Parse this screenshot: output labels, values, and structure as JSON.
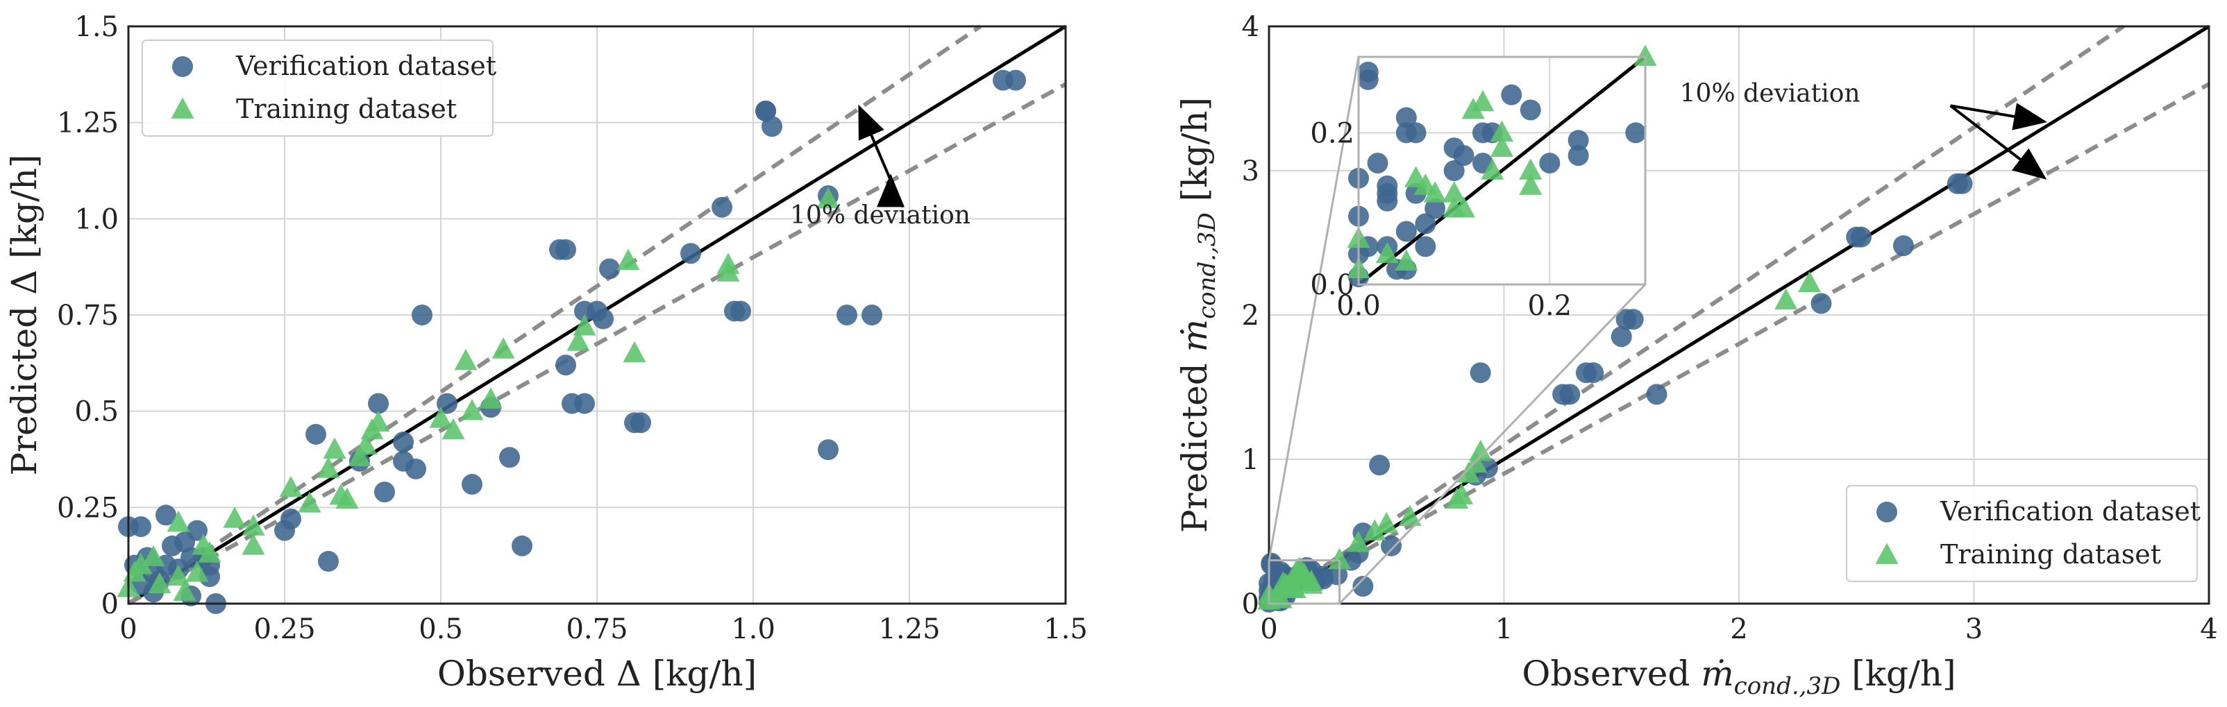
{
  "chart_data": [
    {
      "type": "scatter",
      "xlabel": "Observed Δ [kg/h]",
      "ylabel": "Predicted Δ [kg/h]",
      "xlim": [
        0,
        1.5
      ],
      "ylim": [
        0,
        1.5
      ],
      "xticks": [
        "0",
        "0.25",
        "0.5",
        "0.75",
        "1.0",
        "1.25",
        "1.5"
      ],
      "yticks": [
        "0",
        "0.25",
        "0.5",
        "0.75",
        "1.0",
        "1.25",
        "1.5"
      ],
      "grid": true,
      "legend_position": "top-left",
      "annotation": {
        "text": "10% deviation",
        "anchor": [
          1.22,
          1.1
        ],
        "targets": [
          [
            1.17,
            1.29
          ],
          [
            1.22,
            1.11
          ]
        ]
      },
      "reference_lines": [
        {
          "name": "identity",
          "slope": 1.0,
          "style": "solid"
        },
        {
          "name": "+10%",
          "slope": 1.1,
          "style": "dashed"
        },
        {
          "name": "-10%",
          "slope": 0.9,
          "style": "dashed"
        }
      ],
      "series": [
        {
          "name": "Verification dataset",
          "marker": "circle",
          "color": "#3E6590",
          "points": [
            [
              0.0,
              0.2
            ],
            [
              0.02,
              0.2
            ],
            [
              0.01,
              0.1
            ],
            [
              0.02,
              0.05
            ],
            [
              0.04,
              0.03
            ],
            [
              0.05,
              0.06
            ],
            [
              0.06,
              0.23
            ],
            [
              0.07,
              0.15
            ],
            [
              0.09,
              0.16
            ],
            [
              0.1,
              0.12
            ],
            [
              0.11,
              0.19
            ],
            [
              0.12,
              0.12
            ],
            [
              0.13,
              0.1
            ],
            [
              0.14,
              0.0
            ],
            [
              0.13,
              0.07
            ],
            [
              0.08,
              0.09
            ],
            [
              0.1,
              0.02
            ],
            [
              0.06,
              0.1
            ],
            [
              0.04,
              0.08
            ],
            [
              0.03,
              0.12
            ],
            [
              0.25,
              0.19
            ],
            [
              0.26,
              0.22
            ],
            [
              0.3,
              0.44
            ],
            [
              0.32,
              0.11
            ],
            [
              0.37,
              0.37
            ],
            [
              0.4,
              0.52
            ],
            [
              0.41,
              0.29
            ],
            [
              0.44,
              0.42
            ],
            [
              0.44,
              0.37
            ],
            [
              0.46,
              0.35
            ],
            [
              0.47,
              0.75
            ],
            [
              0.51,
              0.52
            ],
            [
              0.55,
              0.31
            ],
            [
              0.58,
              0.51
            ],
            [
              0.61,
              0.38
            ],
            [
              0.63,
              0.15
            ],
            [
              0.69,
              0.92
            ],
            [
              0.7,
              0.62
            ],
            [
              0.7,
              0.92
            ],
            [
              0.71,
              0.52
            ],
            [
              0.73,
              0.76
            ],
            [
              0.73,
              0.52
            ],
            [
              0.75,
              0.76
            ],
            [
              0.76,
              0.74
            ],
            [
              0.77,
              0.87
            ],
            [
              0.81,
              0.47
            ],
            [
              0.82,
              0.47
            ],
            [
              0.9,
              0.91
            ],
            [
              0.95,
              1.03
            ],
            [
              0.97,
              0.76
            ],
            [
              0.98,
              0.76
            ],
            [
              1.02,
              1.28
            ],
            [
              1.02,
              1.28
            ],
            [
              1.03,
              1.24
            ],
            [
              1.12,
              1.06
            ],
            [
              1.12,
              0.4
            ],
            [
              1.15,
              0.75
            ],
            [
              1.19,
              0.75
            ],
            [
              1.4,
              1.36
            ],
            [
              1.42,
              1.36
            ]
          ]
        },
        {
          "name": "Training dataset",
          "marker": "triangle",
          "color": "#5BC46A",
          "points": [
            [
              0.0,
              0.04
            ],
            [
              0.01,
              0.08
            ],
            [
              0.02,
              0.1
            ],
            [
              0.04,
              0.12
            ],
            [
              0.05,
              0.05
            ],
            [
              0.08,
              0.07
            ],
            [
              0.08,
              0.21
            ],
            [
              0.09,
              0.03
            ],
            [
              0.11,
              0.08
            ],
            [
              0.12,
              0.15
            ],
            [
              0.13,
              0.13
            ],
            [
              0.17,
              0.22
            ],
            [
              0.2,
              0.15
            ],
            [
              0.2,
              0.2
            ],
            [
              0.26,
              0.3
            ],
            [
              0.29,
              0.26
            ],
            [
              0.32,
              0.35
            ],
            [
              0.33,
              0.4
            ],
            [
              0.34,
              0.28
            ],
            [
              0.35,
              0.27
            ],
            [
              0.37,
              0.38
            ],
            [
              0.38,
              0.41
            ],
            [
              0.39,
              0.45
            ],
            [
              0.4,
              0.47
            ],
            [
              0.5,
              0.48
            ],
            [
              0.52,
              0.45
            ],
            [
              0.54,
              0.63
            ],
            [
              0.55,
              0.5
            ],
            [
              0.58,
              0.53
            ],
            [
              0.6,
              0.66
            ],
            [
              0.72,
              0.68
            ],
            [
              0.73,
              0.72
            ],
            [
              0.8,
              0.89
            ],
            [
              0.81,
              0.65
            ],
            [
              0.96,
              0.86
            ],
            [
              0.96,
              0.88
            ],
            [
              1.12,
              1.05
            ]
          ]
        }
      ]
    },
    {
      "type": "scatter",
      "xlabel": "Observed ṁ_cond.,3D [kg/h]",
      "ylabel": "Predicted ṁ_cond.,3D [kg/h]",
      "xlabel_parts": {
        "pre": "Observed ",
        "sym": "ṁ",
        "sub": "cond.,3D",
        "post": " [kg/h]"
      },
      "ylabel_parts": {
        "pre": "Predicted ",
        "sym": "ṁ",
        "sub": "cond.,3D",
        "post": " [kg/h]"
      },
      "xlim": [
        0,
        4
      ],
      "ylim": [
        0,
        4
      ],
      "xticks": [
        "0",
        "1",
        "2",
        "3",
        "4"
      ],
      "yticks": [
        "0",
        "1",
        "2",
        "3",
        "4"
      ],
      "grid": true,
      "legend_position": "bottom-right",
      "annotation": {
        "text": "10% deviation",
        "anchor": [
          2.9,
          3.45
        ],
        "targets": [
          [
            3.3,
            3.34
          ],
          [
            3.3,
            2.95
          ]
        ]
      },
      "inset": {
        "xlim": [
          0,
          0.3
        ],
        "ylim": [
          0,
          0.3
        ],
        "xticks": [
          "0.0",
          "0.2"
        ],
        "yticks": [
          "0.0",
          "0.2"
        ]
      },
      "reference_lines": [
        {
          "name": "identity",
          "slope": 1.0,
          "style": "solid"
        },
        {
          "name": "+10%",
          "slope": 1.1,
          "style": "dashed"
        },
        {
          "name": "-10%",
          "slope": 0.9,
          "style": "dashed"
        }
      ],
      "series": [
        {
          "name": "Verification dataset",
          "marker": "circle",
          "color": "#3E6590",
          "points": [
            [
              0.0,
              0.01
            ],
            [
              0.0,
              0.04
            ],
            [
              0.0,
              0.09
            ],
            [
              0.01,
              0.05
            ],
            [
              0.0,
              0.14
            ],
            [
              0.01,
              0.27
            ],
            [
              0.01,
              0.28
            ],
            [
              0.02,
              0.16
            ],
            [
              0.03,
              0.13
            ],
            [
              0.03,
              0.11
            ],
            [
              0.03,
              0.05
            ],
            [
              0.03,
              0.12
            ],
            [
              0.04,
              0.02
            ],
            [
              0.05,
              0.07
            ],
            [
              0.05,
              0.02
            ],
            [
              0.05,
              0.22
            ],
            [
              0.05,
              0.2
            ],
            [
              0.06,
              0.12
            ],
            [
              0.06,
              0.2
            ],
            [
              0.07,
              0.08
            ],
            [
              0.07,
              0.05
            ],
            [
              0.08,
              0.1
            ],
            [
              0.1,
              0.15
            ],
            [
              0.1,
              0.18
            ],
            [
              0.11,
              0.17
            ],
            [
              0.13,
              0.16
            ],
            [
              0.13,
              0.2
            ],
            [
              0.14,
              0.2
            ],
            [
              0.16,
              0.25
            ],
            [
              0.18,
              0.23
            ],
            [
              0.2,
              0.16
            ],
            [
              0.23,
              0.19
            ],
            [
              0.23,
              0.17
            ],
            [
              0.29,
              0.2
            ],
            [
              0.35,
              0.3
            ],
            [
              0.38,
              0.35
            ],
            [
              0.4,
              0.49
            ],
            [
              0.4,
              0.12
            ],
            [
              0.47,
              0.96
            ],
            [
              0.52,
              0.4
            ],
            [
              0.88,
              0.89
            ],
            [
              0.9,
              1.6
            ],
            [
              0.93,
              0.94
            ],
            [
              1.25,
              1.45
            ],
            [
              1.28,
              1.45
            ],
            [
              1.35,
              1.6
            ],
            [
              1.38,
              1.6
            ],
            [
              1.5,
              1.85
            ],
            [
              1.52,
              1.97
            ],
            [
              1.55,
              1.97
            ],
            [
              1.65,
              1.45
            ],
            [
              2.35,
              2.08
            ],
            [
              2.5,
              2.54
            ],
            [
              2.52,
              2.54
            ],
            [
              2.7,
              2.48
            ],
            [
              2.93,
              2.91
            ],
            [
              2.95,
              2.91
            ]
          ]
        },
        {
          "name": "Training dataset",
          "marker": "triangle",
          "color": "#5BC46A",
          "points": [
            [
              0.0,
              0.02
            ],
            [
              0.0,
              0.06
            ],
            [
              0.03,
              0.04
            ],
            [
              0.05,
              0.03
            ],
            [
              0.06,
              0.14
            ],
            [
              0.07,
              0.13
            ],
            [
              0.08,
              0.12
            ],
            [
              0.1,
              0.12
            ],
            [
              0.1,
              0.1
            ],
            [
              0.11,
              0.1
            ],
            [
              0.12,
              0.23
            ],
            [
              0.13,
              0.24
            ],
            [
              0.14,
              0.15
            ],
            [
              0.15,
              0.2
            ],
            [
              0.15,
              0.18
            ],
            [
              0.18,
              0.15
            ],
            [
              0.18,
              0.13
            ],
            [
              0.3,
              0.3
            ],
            [
              0.38,
              0.42
            ],
            [
              0.45,
              0.5
            ],
            [
              0.5,
              0.55
            ],
            [
              0.6,
              0.6
            ],
            [
              0.8,
              0.72
            ],
            [
              0.82,
              0.75
            ],
            [
              0.85,
              0.9
            ],
            [
              0.88,
              0.97
            ],
            [
              0.9,
              1.05
            ],
            [
              2.2,
              2.1
            ],
            [
              2.3,
              2.22
            ]
          ]
        }
      ]
    }
  ]
}
